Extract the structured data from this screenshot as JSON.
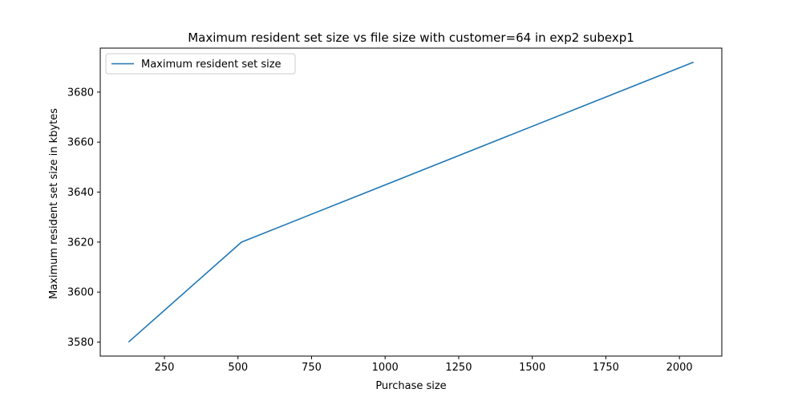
{
  "chart_data": {
    "type": "line",
    "title": "Maximum resident set size vs file size with customer=64 in exp2 subexp1",
    "xlabel": "Purchase size",
    "ylabel": "Maximum resident set size in kbytes",
    "x": [
      128,
      512,
      2048
    ],
    "series": [
      {
        "name": "Maximum resident set size",
        "values": [
          3580,
          3620,
          3692
        ],
        "color": "#1f77b4"
      }
    ],
    "xlim": [
      32,
      2144
    ],
    "ylim": [
      3574.4,
      3697.6
    ],
    "xticks": [
      250,
      500,
      750,
      1000,
      1250,
      1500,
      1750,
      2000
    ],
    "xtick_labels": [
      "250",
      "500",
      "750",
      "1000",
      "1250",
      "1500",
      "1750",
      "2000"
    ],
    "yticks": [
      3580,
      3600,
      3620,
      3640,
      3660,
      3680
    ],
    "ytick_labels": [
      "3580",
      "3600",
      "3620",
      "3640",
      "3660",
      "3680"
    ],
    "grid": false,
    "legend": "upper-left"
  }
}
